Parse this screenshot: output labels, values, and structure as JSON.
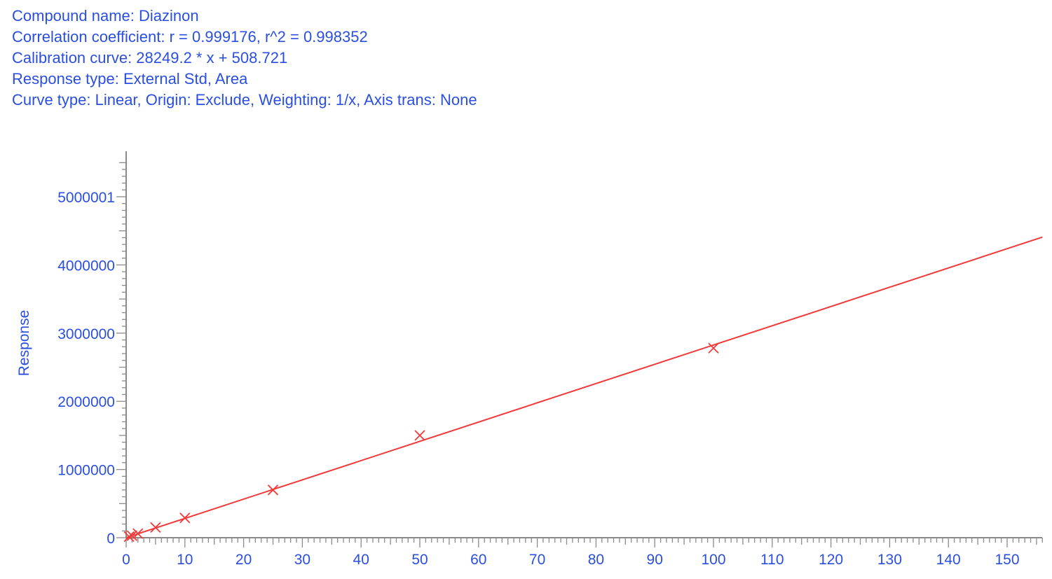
{
  "header": {
    "compound": "Compound name: Diazinon",
    "correlation": "Correlation coefficient: r = 0.999176, r^2 = 0.998352",
    "calibration": "Calibration curve: 28249.2 * x + 508.721",
    "response_type": "Response type: External Std, Area",
    "curve_type": "Curve type: Linear, Origin: Exclude, Weighting: 1/x, Axis trans: None"
  },
  "chart_data": {
    "type": "scatter",
    "title": "",
    "xlabel": "",
    "ylabel": "Response",
    "xlim": [
      0,
      156
    ],
    "ylim": [
      0,
      5500000
    ],
    "grid": false,
    "x_ticks": [
      0,
      10,
      20,
      30,
      40,
      50,
      60,
      70,
      80,
      90,
      100,
      110,
      120,
      130,
      140,
      150
    ],
    "y_ticks": [
      0,
      1000000,
      2000000,
      3000000,
      4000000,
      5000001
    ],
    "y_tick_labels": [
      "0",
      "1000000",
      "2000000",
      "3000000",
      "4000000",
      "5000001"
    ],
    "points": [
      {
        "x": 0.5,
        "y": 15000
      },
      {
        "x": 1,
        "y": 30000
      },
      {
        "x": 2,
        "y": 60000
      },
      {
        "x": 5,
        "y": 150000
      },
      {
        "x": 10,
        "y": 290000
      },
      {
        "x": 25,
        "y": 700000
      },
      {
        "x": 50,
        "y": 1500000
      },
      {
        "x": 100,
        "y": 2780000
      }
    ],
    "fit": {
      "slope": 28249.2,
      "intercept": 508.721
    },
    "colors": {
      "text": "#2a4fe0",
      "fit_line": "#f03a3a",
      "markers": "#f03a3a",
      "axis": "#8a8a8a"
    }
  }
}
